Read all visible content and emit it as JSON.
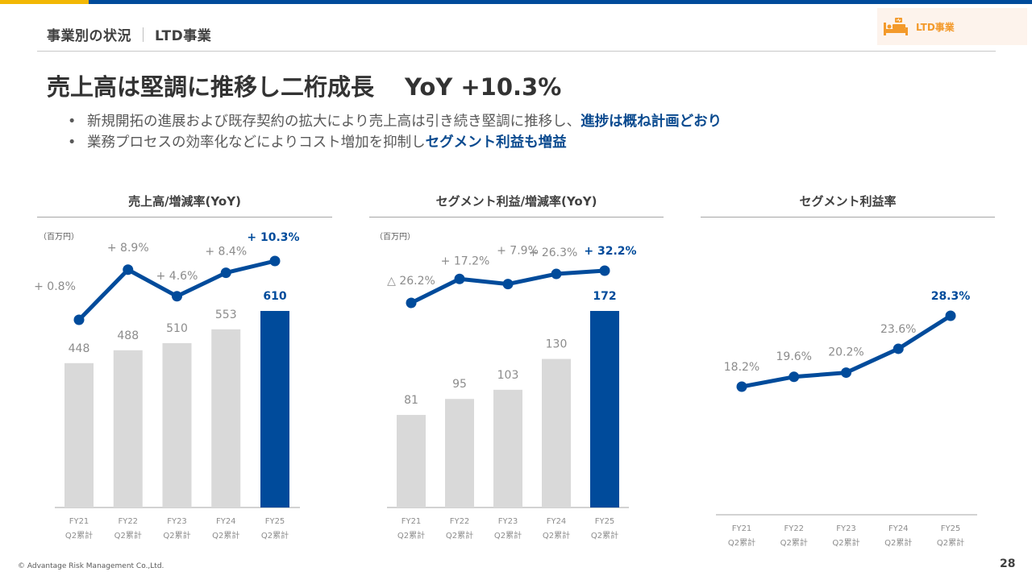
{
  "header": {
    "section": "事業別の状況",
    "subsection": "LTD事業",
    "badge_label": "LTD事業",
    "badge_icon": "bed-icon"
  },
  "headline": {
    "text": "売上高は堅調に推移し二桁成長",
    "yoy": "YoY +10.3%"
  },
  "bullets": [
    {
      "text": "新規開拓の進展および既存契約の拡大により売上高は引き続き堅調に推移し、",
      "emphasis": "進捗は概ね計画どおり"
    },
    {
      "text": "業務プロセスの効率化などによりコスト増加を抑制し",
      "emphasis": "セグメント利益も増益"
    }
  ],
  "colors": {
    "accent_blue": "#004b9b",
    "bar_gray": "#d9d9d9",
    "brand_orange": "#f39a2b",
    "brand_yellow": "#f2b705"
  },
  "footer": {
    "copyright": "© Advantage Risk Management Co.,Ltd.",
    "page": "28"
  },
  "chart_data": [
    {
      "type": "bar+line",
      "title": "売上高/増減率(YoY)",
      "unit_label": "（百万円）",
      "categories": [
        [
          "FY21",
          "Q2累計"
        ],
        [
          "FY22",
          "Q2累計"
        ],
        [
          "FY23",
          "Q2累計"
        ],
        [
          "FY24",
          "Q2累計"
        ],
        [
          "FY25",
          "Q2累計"
        ]
      ],
      "bars": {
        "name": "売上高",
        "values": [
          448,
          488,
          510,
          553,
          610
        ],
        "labels": [
          "448",
          "488",
          "510",
          "553",
          "610"
        ],
        "highlight_index": 4
      },
      "line": {
        "name": "増減率(YoY)",
        "values": [
          0.8,
          8.9,
          4.6,
          8.4,
          10.3
        ],
        "labels": [
          "+ 0.8%",
          "+ 8.9%",
          "+ 4.6%",
          "+ 8.4%",
          "+ 10.3%"
        ]
      }
    },
    {
      "type": "bar+line",
      "title": "セグメント利益/増減率(YoY)",
      "unit_label": "（百万円）",
      "categories": [
        [
          "FY21",
          "Q2累計"
        ],
        [
          "FY22",
          "Q2累計"
        ],
        [
          "FY23",
          "Q2累計"
        ],
        [
          "FY24",
          "Q2累計"
        ],
        [
          "FY25",
          "Q2累計"
        ]
      ],
      "bars": {
        "name": "セグメント利益",
        "values": [
          81,
          95,
          103,
          130,
          172
        ],
        "labels": [
          "81",
          "95",
          "103",
          "130",
          "172"
        ],
        "highlight_index": 4
      },
      "line": {
        "name": "増減率(YoY)",
        "values": [
          -26.2,
          17.2,
          7.9,
          26.3,
          32.2
        ],
        "labels": [
          "△ 26.2%",
          "+ 17.2%",
          "+ 7.9%",
          "+ 26.3%",
          "+ 32.2%"
        ]
      }
    },
    {
      "type": "line",
      "title": "セグメント利益率",
      "categories": [
        [
          "FY21",
          "Q2累計"
        ],
        [
          "FY22",
          "Q2累計"
        ],
        [
          "FY23",
          "Q2累計"
        ],
        [
          "FY24",
          "Q2累計"
        ],
        [
          "FY25",
          "Q2累計"
        ]
      ],
      "line": {
        "name": "セグメント利益率",
        "values": [
          18.2,
          19.6,
          20.2,
          23.6,
          28.3
        ],
        "labels": [
          "18.2%",
          "19.6%",
          "20.2%",
          "23.6%",
          "28.3%"
        ],
        "highlight_index": 4
      }
    }
  ]
}
